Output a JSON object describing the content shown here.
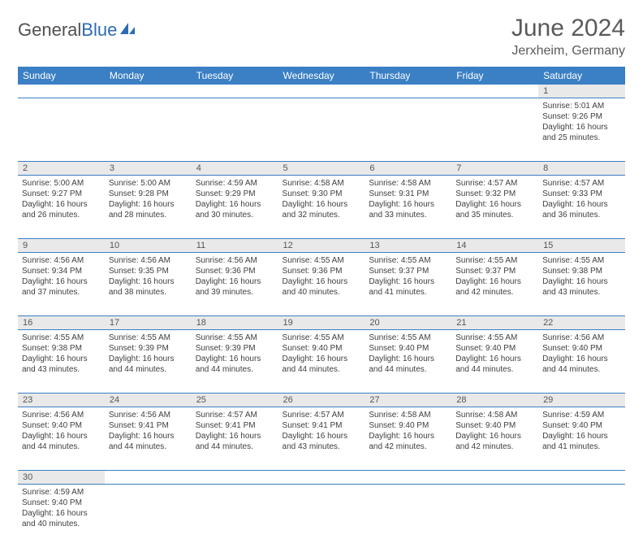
{
  "logo": {
    "part1": "General",
    "part2": "Blue"
  },
  "title": "June 2024",
  "location": "Jerxheim, Germany",
  "colors": {
    "header_bg": "#3b7fc4",
    "header_fg": "#ffffff",
    "daynum_bg": "#e9e9e9",
    "text": "#404040",
    "rule": "#3b7fc4"
  },
  "typography": {
    "title_fontsize": 30,
    "location_fontsize": 16,
    "dayhead_fontsize": 12,
    "cell_fontsize": 10
  },
  "day_headers": [
    "Sunday",
    "Monday",
    "Tuesday",
    "Wednesday",
    "Thursday",
    "Friday",
    "Saturday"
  ],
  "weeks": [
    [
      null,
      null,
      null,
      null,
      null,
      null,
      {
        "n": "1",
        "sunrise": "Sunrise: 5:01 AM",
        "sunset": "Sunset: 9:26 PM",
        "daylight1": "Daylight: 16 hours",
        "daylight2": "and 25 minutes."
      }
    ],
    [
      {
        "n": "2",
        "sunrise": "Sunrise: 5:00 AM",
        "sunset": "Sunset: 9:27 PM",
        "daylight1": "Daylight: 16 hours",
        "daylight2": "and 26 minutes."
      },
      {
        "n": "3",
        "sunrise": "Sunrise: 5:00 AM",
        "sunset": "Sunset: 9:28 PM",
        "daylight1": "Daylight: 16 hours",
        "daylight2": "and 28 minutes."
      },
      {
        "n": "4",
        "sunrise": "Sunrise: 4:59 AM",
        "sunset": "Sunset: 9:29 PM",
        "daylight1": "Daylight: 16 hours",
        "daylight2": "and 30 minutes."
      },
      {
        "n": "5",
        "sunrise": "Sunrise: 4:58 AM",
        "sunset": "Sunset: 9:30 PM",
        "daylight1": "Daylight: 16 hours",
        "daylight2": "and 32 minutes."
      },
      {
        "n": "6",
        "sunrise": "Sunrise: 4:58 AM",
        "sunset": "Sunset: 9:31 PM",
        "daylight1": "Daylight: 16 hours",
        "daylight2": "and 33 minutes."
      },
      {
        "n": "7",
        "sunrise": "Sunrise: 4:57 AM",
        "sunset": "Sunset: 9:32 PM",
        "daylight1": "Daylight: 16 hours",
        "daylight2": "and 35 minutes."
      },
      {
        "n": "8",
        "sunrise": "Sunrise: 4:57 AM",
        "sunset": "Sunset: 9:33 PM",
        "daylight1": "Daylight: 16 hours",
        "daylight2": "and 36 minutes."
      }
    ],
    [
      {
        "n": "9",
        "sunrise": "Sunrise: 4:56 AM",
        "sunset": "Sunset: 9:34 PM",
        "daylight1": "Daylight: 16 hours",
        "daylight2": "and 37 minutes."
      },
      {
        "n": "10",
        "sunrise": "Sunrise: 4:56 AM",
        "sunset": "Sunset: 9:35 PM",
        "daylight1": "Daylight: 16 hours",
        "daylight2": "and 38 minutes."
      },
      {
        "n": "11",
        "sunrise": "Sunrise: 4:56 AM",
        "sunset": "Sunset: 9:36 PM",
        "daylight1": "Daylight: 16 hours",
        "daylight2": "and 39 minutes."
      },
      {
        "n": "12",
        "sunrise": "Sunrise: 4:55 AM",
        "sunset": "Sunset: 9:36 PM",
        "daylight1": "Daylight: 16 hours",
        "daylight2": "and 40 minutes."
      },
      {
        "n": "13",
        "sunrise": "Sunrise: 4:55 AM",
        "sunset": "Sunset: 9:37 PM",
        "daylight1": "Daylight: 16 hours",
        "daylight2": "and 41 minutes."
      },
      {
        "n": "14",
        "sunrise": "Sunrise: 4:55 AM",
        "sunset": "Sunset: 9:37 PM",
        "daylight1": "Daylight: 16 hours",
        "daylight2": "and 42 minutes."
      },
      {
        "n": "15",
        "sunrise": "Sunrise: 4:55 AM",
        "sunset": "Sunset: 9:38 PM",
        "daylight1": "Daylight: 16 hours",
        "daylight2": "and 43 minutes."
      }
    ],
    [
      {
        "n": "16",
        "sunrise": "Sunrise: 4:55 AM",
        "sunset": "Sunset: 9:38 PM",
        "daylight1": "Daylight: 16 hours",
        "daylight2": "and 43 minutes."
      },
      {
        "n": "17",
        "sunrise": "Sunrise: 4:55 AM",
        "sunset": "Sunset: 9:39 PM",
        "daylight1": "Daylight: 16 hours",
        "daylight2": "and 44 minutes."
      },
      {
        "n": "18",
        "sunrise": "Sunrise: 4:55 AM",
        "sunset": "Sunset: 9:39 PM",
        "daylight1": "Daylight: 16 hours",
        "daylight2": "and 44 minutes."
      },
      {
        "n": "19",
        "sunrise": "Sunrise: 4:55 AM",
        "sunset": "Sunset: 9:40 PM",
        "daylight1": "Daylight: 16 hours",
        "daylight2": "and 44 minutes."
      },
      {
        "n": "20",
        "sunrise": "Sunrise: 4:55 AM",
        "sunset": "Sunset: 9:40 PM",
        "daylight1": "Daylight: 16 hours",
        "daylight2": "and 44 minutes."
      },
      {
        "n": "21",
        "sunrise": "Sunrise: 4:55 AM",
        "sunset": "Sunset: 9:40 PM",
        "daylight1": "Daylight: 16 hours",
        "daylight2": "and 44 minutes."
      },
      {
        "n": "22",
        "sunrise": "Sunrise: 4:56 AM",
        "sunset": "Sunset: 9:40 PM",
        "daylight1": "Daylight: 16 hours",
        "daylight2": "and 44 minutes."
      }
    ],
    [
      {
        "n": "23",
        "sunrise": "Sunrise: 4:56 AM",
        "sunset": "Sunset: 9:40 PM",
        "daylight1": "Daylight: 16 hours",
        "daylight2": "and 44 minutes."
      },
      {
        "n": "24",
        "sunrise": "Sunrise: 4:56 AM",
        "sunset": "Sunset: 9:41 PM",
        "daylight1": "Daylight: 16 hours",
        "daylight2": "and 44 minutes."
      },
      {
        "n": "25",
        "sunrise": "Sunrise: 4:57 AM",
        "sunset": "Sunset: 9:41 PM",
        "daylight1": "Daylight: 16 hours",
        "daylight2": "and 44 minutes."
      },
      {
        "n": "26",
        "sunrise": "Sunrise: 4:57 AM",
        "sunset": "Sunset: 9:41 PM",
        "daylight1": "Daylight: 16 hours",
        "daylight2": "and 43 minutes."
      },
      {
        "n": "27",
        "sunrise": "Sunrise: 4:58 AM",
        "sunset": "Sunset: 9:40 PM",
        "daylight1": "Daylight: 16 hours",
        "daylight2": "and 42 minutes."
      },
      {
        "n": "28",
        "sunrise": "Sunrise: 4:58 AM",
        "sunset": "Sunset: 9:40 PM",
        "daylight1": "Daylight: 16 hours",
        "daylight2": "and 42 minutes."
      },
      {
        "n": "29",
        "sunrise": "Sunrise: 4:59 AM",
        "sunset": "Sunset: 9:40 PM",
        "daylight1": "Daylight: 16 hours",
        "daylight2": "and 41 minutes."
      }
    ],
    [
      {
        "n": "30",
        "sunrise": "Sunrise: 4:59 AM",
        "sunset": "Sunset: 9:40 PM",
        "daylight1": "Daylight: 16 hours",
        "daylight2": "and 40 minutes."
      },
      null,
      null,
      null,
      null,
      null,
      null
    ]
  ]
}
